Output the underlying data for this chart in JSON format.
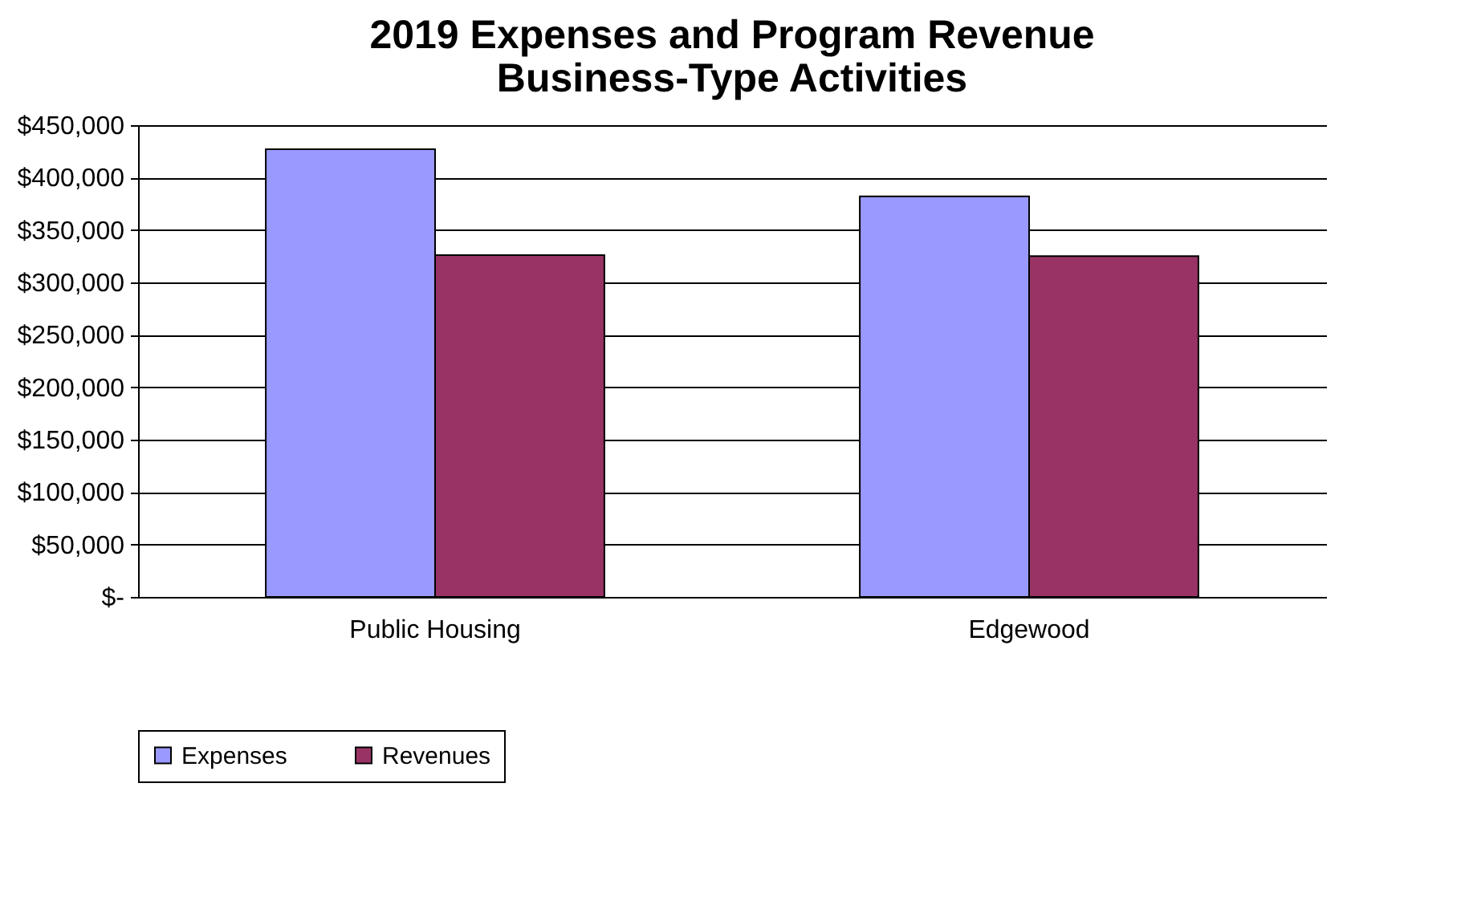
{
  "chart_data": {
    "type": "bar",
    "title": [
      "2019 Expenses and Program Revenue",
      "Business-Type Activities"
    ],
    "categories": [
      "Public Housing",
      "Edgewood"
    ],
    "series": [
      {
        "name": "Expenses",
        "color": "#9999ff",
        "values": [
          427000,
          382000
        ]
      },
      {
        "name": "Revenues",
        "color": "#993366",
        "values": [
          326000,
          325000
        ]
      }
    ],
    "ylim": [
      0,
      450000
    ],
    "yticks": [
      {
        "value": 0,
        "label": "$-"
      },
      {
        "value": 50000,
        "label": "$50,000"
      },
      {
        "value": 100000,
        "label": "$100,000"
      },
      {
        "value": 150000,
        "label": "$150,000"
      },
      {
        "value": 200000,
        "label": "$200,000"
      },
      {
        "value": 250000,
        "label": "$250,000"
      },
      {
        "value": 300000,
        "label": "$300,000"
      },
      {
        "value": 350000,
        "label": "$350,000"
      },
      {
        "value": 400000,
        "label": "$400,000"
      },
      {
        "value": 450000,
        "label": "$450,000"
      }
    ],
    "grid": "y",
    "legend": "bottom"
  }
}
